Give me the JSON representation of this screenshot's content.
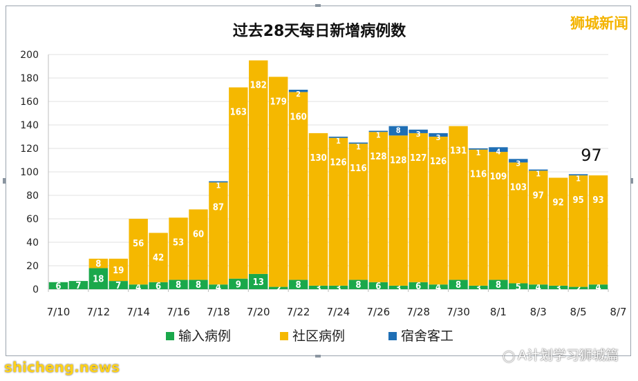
{
  "watermark": {
    "brand": "狮城新闻",
    "site": "shicheng.news",
    "account": "A计划学习狮城篇"
  },
  "chart_data": {
    "type": "bar",
    "stacked": true,
    "title": "过去28天每日新增病例数",
    "ylim": [
      0,
      200
    ],
    "yticks": [
      0,
      20,
      40,
      60,
      80,
      100,
      120,
      140,
      160,
      180,
      200
    ],
    "categories": [
      "7/10",
      "7/11",
      "7/12",
      "7/13",
      "7/14",
      "7/15",
      "7/16",
      "7/17",
      "7/18",
      "7/19",
      "7/20",
      "7/21",
      "7/22",
      "7/23",
      "7/24",
      "7/25",
      "7/26",
      "7/27",
      "7/28",
      "7/29",
      "7/30",
      "7/31",
      "8/1",
      "8/2",
      "8/3",
      "8/4",
      "8/5",
      "8/6"
    ],
    "xtick_labels": [
      "7/10",
      "7/12",
      "7/14",
      "7/16",
      "7/18",
      "7/20",
      "7/22",
      "7/24",
      "7/26",
      "7/28",
      "7/30",
      "8/1",
      "8/3",
      "8/5",
      "8/7"
    ],
    "series": [
      {
        "name": "输入病例",
        "color": "#1aa84b",
        "values": [
          6,
          7,
          18,
          7,
          4,
          6,
          8,
          8,
          4,
          9,
          13,
          2,
          8,
          3,
          3,
          8,
          6,
          3,
          6,
          4,
          8,
          3,
          8,
          5,
          4,
          3,
          2,
          4
        ],
        "labels": [
          "6",
          "7",
          "18",
          "7",
          "4",
          "6",
          "8",
          "8",
          "4",
          "9",
          "13",
          "2",
          "8",
          "3",
          "3",
          "8",
          "6",
          "3",
          "6",
          "4",
          "8",
          "3",
          "8",
          "5",
          "4",
          "3",
          "2",
          "4"
        ]
      },
      {
        "name": "社区病例",
        "color": "#f5b800",
        "values": [
          0,
          0,
          8,
          19,
          56,
          42,
          53,
          60,
          87,
          163,
          182,
          179,
          160,
          130,
          126,
          116,
          128,
          128,
          127,
          126,
          131,
          116,
          109,
          103,
          97,
          92,
          95,
          93
        ],
        "labels": [
          "",
          "",
          "8",
          "19",
          "56",
          "42",
          "53",
          "60",
          "87",
          "163",
          "182",
          "179",
          "160",
          "130",
          "126",
          "116",
          "128",
          "128",
          "127",
          "126",
          "131",
          "116",
          "109",
          "103",
          "97",
          "92",
          "95",
          "93"
        ]
      },
      {
        "name": "宿舍客工",
        "color": "#1f6fb5",
        "values": [
          0,
          0,
          0,
          0,
          0,
          0,
          0,
          0,
          1,
          0,
          0,
          0,
          2,
          0,
          1,
          1,
          1,
          8,
          3,
          3,
          0,
          1,
          4,
          3,
          1,
          0,
          1,
          0
        ],
        "labels": [
          "",
          "",
          "",
          "",
          "",
          "",
          "",
          "",
          "1",
          "",
          "",
          "",
          "2",
          "",
          "1",
          "1",
          "1",
          "8",
          "3",
          "3",
          "",
          "1",
          "4",
          "3",
          "1",
          "",
          "1",
          ""
        ]
      }
    ],
    "annotations": [
      {
        "category": "8/6",
        "text": "97"
      }
    ],
    "grid": true,
    "legend_position": "bottom"
  }
}
